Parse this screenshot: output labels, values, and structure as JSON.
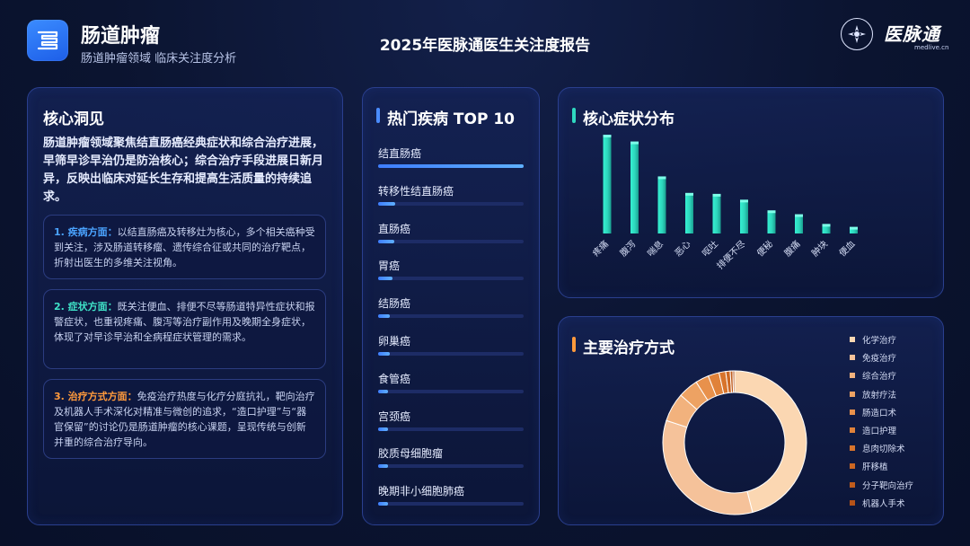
{
  "header": {
    "title": "肠道肿瘤",
    "subtitle": "肠道肿瘤领域 临床关注度分析",
    "report_title": "2025年医脉通医生关注度报告",
    "brand_name": "医脉通",
    "brand_url": "medlive.cn",
    "app_icon": "intestine-icon",
    "emblem_icon": "emblem-icon"
  },
  "insights": {
    "title": "核心洞见",
    "summary": "肠道肿瘤领域聚焦结直肠癌经典症状和综合治疗进展，早筛早诊早治仍是防治核心；综合治疗手段进展日新月异，反映出临床对延长生存和提高生活质量的持续追求。",
    "items": [
      {
        "heading": "1. 疾病方面：",
        "text": "以结直肠癌及转移灶为核心，多个相关癌种受到关注，涉及肠道转移瘤、遗传综合征或共同的治疗靶点，折射出医生的多维关注视角。",
        "color": "#4aa3ff"
      },
      {
        "heading": "2. 症状方面：",
        "text": "既关注便血、排便不尽等肠道特异性症状和报警症状，也重视疼痛、腹泻等治疗副作用及晚期全身症状，体现了对早诊早治和全病程症状管理的需求。",
        "color": "#3fe3c8"
      },
      {
        "heading": "3. 治疗方式方面：",
        "text": "免疫治疗热度与化疗分庭抗礼，靶向治疗及机器人手术深化对精准与微创的追求，“造口护理”与“器官保留”的讨论仍是肠道肿瘤的核心课题，呈现传统与创新并重的综合治疗导向。",
        "color": "#ff9a3c"
      }
    ]
  },
  "top10": {
    "title": "热门疾病 TOP 10",
    "accent": "#4a8cff",
    "diseases": [
      {
        "name": "结直肠癌",
        "value": 1.0
      },
      {
        "name": "转移性结直肠癌",
        "value": 0.12
      },
      {
        "name": "直肠癌",
        "value": 0.11
      },
      {
        "name": "胃癌",
        "value": 0.1
      },
      {
        "name": "结肠癌",
        "value": 0.08
      },
      {
        "name": "卵巢癌",
        "value": 0.08
      },
      {
        "name": "食管癌",
        "value": 0.07
      },
      {
        "name": "宫颈癌",
        "value": 0.07
      },
      {
        "name": "胶质母细胞瘤",
        "value": 0.07
      },
      {
        "name": "晚期非小细胞肺癌",
        "value": 0.07
      }
    ]
  },
  "symptoms": {
    "title": "核心症状分布",
    "accent": "#2fd8c0",
    "chart_data": {
      "type": "bar",
      "categories": [
        "疼痛",
        "腹泻",
        "喘息",
        "恶心",
        "呕吐",
        "排便不尽",
        "便秘",
        "腹痛",
        "肿块",
        "便血"
      ],
      "values": [
        100,
        93,
        57,
        40,
        39,
        33,
        22,
        18,
        8,
        5
      ],
      "ylim": [
        0,
        100
      ],
      "grid": false
    }
  },
  "treatment": {
    "title": "主要治疗方式",
    "accent": "#ff9a3c",
    "chart_data": {
      "type": "pie",
      "donut": true,
      "labels": [
        "化学治疗",
        "免疫治疗",
        "综合治疗",
        "放射疗法",
        "肠造口术",
        "造口护理",
        "息肉切除术",
        "肝移植",
        "分子靶向治疗",
        "机器人手术"
      ],
      "values": [
        46.0,
        34.0,
        6.5,
        4.5,
        3.0,
        2.5,
        1.5,
        1.0,
        0.6,
        0.4
      ],
      "colors": [
        "#fbd7b2",
        "#f5c29a",
        "#f2b27d",
        "#eda263",
        "#e8914c",
        "#e0823a",
        "#d8742c",
        "#cc6722",
        "#c05c1c",
        "#b45218"
      ],
      "legend": "right"
    }
  }
}
